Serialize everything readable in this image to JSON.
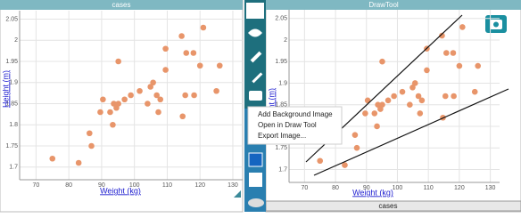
{
  "left_panel": {
    "title": "cases"
  },
  "right_panel": {
    "title": "DrawTool",
    "footer": "cases"
  },
  "chart_data": {
    "type": "scatter",
    "x_label": "Weight (kg)",
    "y_label": "Height (m)",
    "x": [
      75,
      83,
      86.3,
      86.9,
      89.6,
      90.4,
      92.6,
      93.4,
      93.7,
      94.5,
      95.1,
      95.1,
      97,
      98.9,
      101.6,
      104,
      104.9,
      105.7,
      106.8,
      107.3,
      107.9,
      109.5,
      109.5,
      114.4,
      114.7,
      115.5,
      115.8,
      118,
      121,
      120,
      118.2,
      125,
      126
    ],
    "values": [
      1.72,
      1.71,
      1.78,
      1.75,
      1.83,
      1.86,
      1.83,
      1.8,
      1.85,
      1.84,
      1.95,
      1.85,
      1.86,
      1.87,
      1.88,
      1.85,
      1.89,
      1.9,
      1.87,
      1.83,
      1.86,
      1.93,
      1.98,
      2.01,
      1.82,
      1.87,
      1.97,
      1.97,
      2.03,
      1.94,
      1.87,
      1.88,
      1.94
    ],
    "xlim": [
      65,
      133
    ],
    "ylim": [
      1.67,
      2.07
    ],
    "xticks": [
      70,
      80,
      90,
      100,
      110,
      120,
      130
    ],
    "yticks": [
      1.7,
      1.75,
      1.8,
      1.85,
      1.9,
      1.95,
      2,
      2.05
    ],
    "color": "#e8956a",
    "grid": true
  },
  "menu": {
    "items": [
      "Add Background Image",
      "Open in Draw Tool",
      "Export Image..."
    ]
  }
}
